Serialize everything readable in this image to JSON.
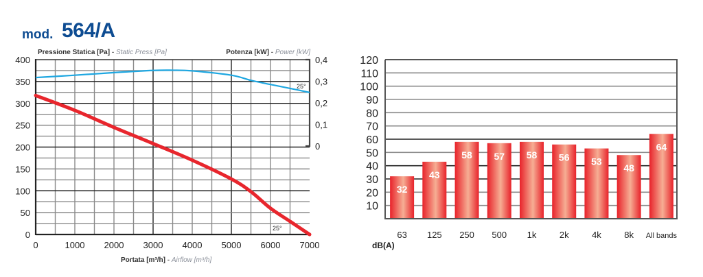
{
  "header": {
    "mod_label": "mod.",
    "model": "564/A"
  },
  "colors": {
    "brand": "#0e4c92",
    "pressure_line": "#e8262d",
    "power_line": "#1ea7e1",
    "bar_edge": "#e8222a",
    "bar_center": "#f6ae94"
  },
  "chart_data": [
    {
      "type": "line",
      "title": "",
      "left_axis_label": {
        "it": "Pressione Statica [Pa]",
        "en": "Static Press [Pa]",
        "sep": " - "
      },
      "right_axis_label": {
        "it": "Potenza [kW]",
        "en": "Power [kW]",
        "sep": " - "
      },
      "x_axis_label": {
        "it": "Portata [m³/h]",
        "en": "Airflow [m³/h]",
        "sep": " - "
      },
      "xlim": [
        0,
        7000
      ],
      "ylim": [
        0,
        400
      ],
      "y2lim": [
        0,
        0.4
      ],
      "x_ticks": [
        "0",
        "1000",
        "2000",
        "3000",
        "4000",
        "5000",
        "6000",
        "7000"
      ],
      "y_ticks": [
        "0",
        "50",
        "100",
        "150",
        "200",
        "250",
        "300",
        "350",
        "400"
      ],
      "y2_ticks": [
        "0",
        "0,1",
        "0,2",
        "0,3",
        "0,4"
      ],
      "grid": true,
      "series": [
        {
          "name": "Static pressure (25°)",
          "axis": "left",
          "annotation": "25°",
          "x": [
            0,
            1000,
            2000,
            3000,
            4000,
            5000,
            5500,
            6000,
            6500,
            7000
          ],
          "values": [
            318,
            284,
            245,
            208,
            170,
            127,
            98,
            60,
            30,
            0
          ]
        },
        {
          "name": "Power (25°)",
          "axis": "right",
          "annotation": "25°",
          "x": [
            0,
            1000,
            2000,
            3000,
            3500,
            4000,
            5000,
            5500,
            6000,
            6500,
            7000
          ],
          "values": [
            0.317,
            0.328,
            0.34,
            0.35,
            0.351,
            0.348,
            0.328,
            0.304,
            0.285,
            0.267,
            0.248
          ]
        }
      ]
    },
    {
      "type": "bar",
      "title": "",
      "xlabel": "dB(A)",
      "ylabel": "",
      "ylim": [
        0,
        120
      ],
      "y_ticks": [
        "10",
        "20",
        "30",
        "40",
        "50",
        "60",
        "70",
        "80",
        "90",
        "100",
        "110",
        "120"
      ],
      "grid": true,
      "categories": [
        "63",
        "125",
        "250",
        "500",
        "1k",
        "2k",
        "4k",
        "8k",
        "All bands"
      ],
      "values": [
        32,
        43,
        58,
        57,
        58,
        56,
        53,
        48,
        64
      ]
    }
  ]
}
